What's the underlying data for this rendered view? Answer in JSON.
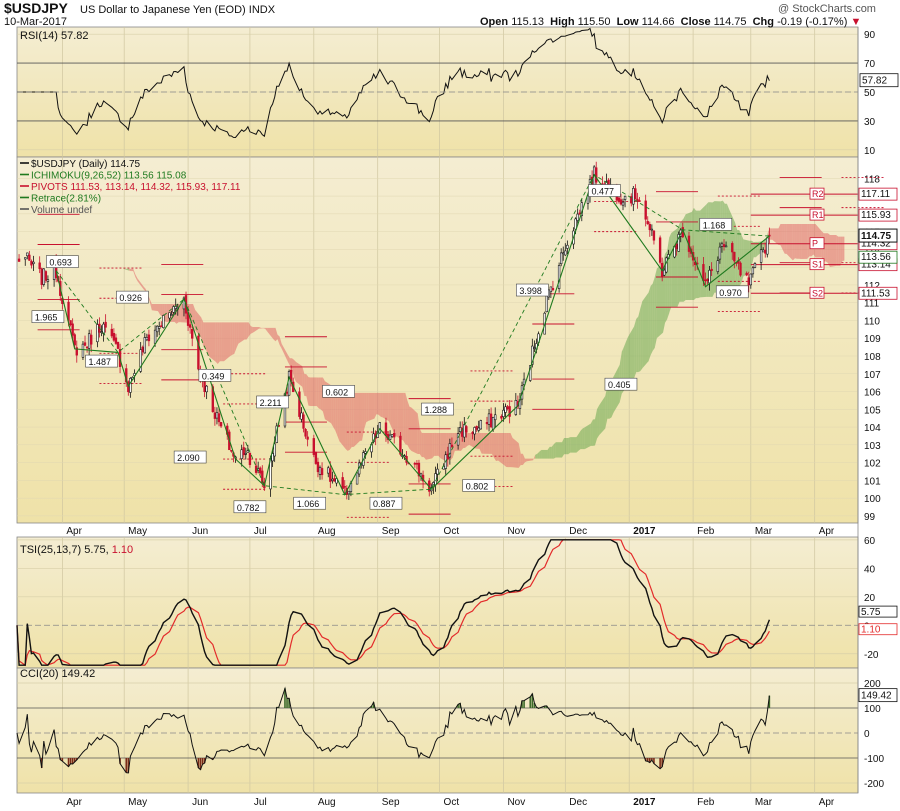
{
  "header": {
    "symbol": "$USDJPY",
    "description": "US Dollar to Japanese Yen (EOD)",
    "exchange": "INDX",
    "date": "10-Mar-2017",
    "watermark": "@ StockCharts.com",
    "open_label": "Open",
    "open": "115.13",
    "high_label": "High",
    "high": "115.50",
    "low_label": "Low",
    "low": "114.66",
    "close_label": "Close",
    "close": "114.75",
    "chg_label": "Chg",
    "chg": "-0.19 (-0.17%)"
  },
  "colors": {
    "bg_top": "#f4edd2",
    "bg_bottom": "#efe2a8",
    "up": "#1f7a1f",
    "down": "#c8102e",
    "pivot": "#c8102e",
    "cloud_bull": "#6aa84f",
    "cloud_bear": "#e06666",
    "tsi_signal": "#e32b2b",
    "oscillator_fill_pos": "#3d6b2a",
    "oscillator_fill_neg": "#7a2b18"
  },
  "rsi": {
    "label": "RSI(14) 57.82",
    "value_tag": "57.82"
  },
  "main": {
    "legend": [
      {
        "text": "$USDJPY (Daily) 114.75",
        "color": "#111111"
      },
      {
        "text": "ICHIMOKU(9,26,52) 113.56 115.08",
        "color": "#1f7a1f"
      },
      {
        "text": "PIVOTS 111.53, 113.14, 114.32, 115.93, 117.11",
        "color": "#c8102e"
      },
      {
        "text": "Retrace(2.81%)",
        "color": "#1f7a1f"
      },
      {
        "text": "Volume undef",
        "color": "#555555"
      }
    ],
    "pivot_labels": [
      {
        "label": "R2",
        "price": "117.11"
      },
      {
        "label": "R1",
        "price": "115.93"
      },
      {
        "label": "P",
        "price": "114.32"
      },
      {
        "label": "S1",
        "price": "113.14"
      },
      {
        "label": "S2",
        "price": "111.53"
      }
    ],
    "right_tags": [
      {
        "text": "114.75",
        "color": "#000000"
      },
      {
        "text": "115.08",
        "color": "#c8102e"
      },
      {
        "text": "114.32",
        "color": "#c8102e"
      },
      {
        "text": "113.56",
        "color": "#1f7a1f"
      }
    ],
    "retrace_labels": [
      "0.693",
      "0.926",
      "1.965",
      "1.487",
      "0.349",
      "2.090",
      "2.211",
      "0.602",
      "1.288",
      "0.782",
      "1.066",
      "0.887",
      "0.802",
      "3.998",
      "0.477",
      "0.405",
      "1.168",
      "0.970"
    ]
  },
  "tsi": {
    "label_main": "TSI(25,13,7) 5.75,",
    "label_signal": "1.10",
    "value_tag": "5.75",
    "signal_tag": "1.10"
  },
  "cci": {
    "label": "CCI(20) 149.42",
    "value_tag": "149.42"
  },
  "chart_data": [
    {
      "panel": "price",
      "type": "candlestick",
      "title": "$USDJPY (Daily) 114.75",
      "y_ticks": [
        99,
        100,
        101,
        102,
        103,
        104,
        105,
        106,
        107,
        108,
        109,
        110,
        111,
        112,
        113,
        114,
        115,
        116,
        117,
        118
      ],
      "ylim": [
        98.6,
        119.2
      ],
      "x_labels": [
        "Apr",
        "May",
        "Jun",
        "Jul",
        "Aug",
        "Sep",
        "Oct",
        "Nov",
        "Dec",
        "2017",
        "Feb",
        "Mar",
        "Apr"
      ],
      "close_anchors": [
        {
          "date": "2016-03-14",
          "close": 113.5
        },
        {
          "date": "2016-03-22",
          "close": 112.4
        },
        {
          "date": "2016-03-29",
          "close": 112.8
        },
        {
          "date": "2016-04-07",
          "close": 108.4
        },
        {
          "date": "2016-04-12",
          "close": 108.6
        },
        {
          "date": "2016-04-20",
          "close": 109.8
        },
        {
          "date": "2016-04-28",
          "close": 108.2
        },
        {
          "date": "2016-05-03",
          "close": 106.3
        },
        {
          "date": "2016-05-12",
          "close": 109.0
        },
        {
          "date": "2016-05-30",
          "close": 111.2
        },
        {
          "date": "2016-06-06",
          "close": 107.3
        },
        {
          "date": "2016-06-16",
          "close": 104.2
        },
        {
          "date": "2016-06-24",
          "close": 102.2
        },
        {
          "date": "2016-06-29",
          "close": 102.8
        },
        {
          "date": "2016-07-08",
          "close": 100.7
        },
        {
          "date": "2016-07-20",
          "close": 106.8
        },
        {
          "date": "2016-08-01",
          "close": 102.2
        },
        {
          "date": "2016-08-16",
          "close": 100.2
        },
        {
          "date": "2016-09-02",
          "close": 103.9
        },
        {
          "date": "2016-09-16",
          "close": 102.3
        },
        {
          "date": "2016-09-27",
          "close": 100.5
        },
        {
          "date": "2016-10-10",
          "close": 103.8
        },
        {
          "date": "2016-10-20",
          "close": 103.9
        },
        {
          "date": "2016-10-31",
          "close": 104.8
        },
        {
          "date": "2016-11-08",
          "close": 105.2
        },
        {
          "date": "2016-11-09",
          "close": 105.6
        },
        {
          "date": "2016-11-21",
          "close": 110.8
        },
        {
          "date": "2016-12-01",
          "close": 114.2
        },
        {
          "date": "2016-12-15",
          "close": 118.2
        },
        {
          "date": "2016-12-28",
          "close": 117.0
        },
        {
          "date": "2017-01-06",
          "close": 117.0
        },
        {
          "date": "2017-01-17",
          "close": 112.8
        },
        {
          "date": "2017-01-27",
          "close": 115.1
        },
        {
          "date": "2017-02-07",
          "close": 111.9
        },
        {
          "date": "2017-02-15",
          "close": 114.3
        },
        {
          "date": "2017-02-28",
          "close": 112.0
        },
        {
          "date": "2017-03-10",
          "close": 114.75
        }
      ],
      "pivots": {
        "S2": 111.53,
        "S1": 113.14,
        "P": 114.32,
        "R1": 115.93,
        "R2": 117.11
      }
    },
    {
      "panel": "rsi",
      "type": "line",
      "title": "RSI(14) 57.82",
      "y_ticks": [
        10,
        30,
        50,
        70,
        90
      ],
      "ylim": [
        5,
        95
      ],
      "overbought": 70,
      "oversold": 30,
      "last": 57.82
    },
    {
      "panel": "tsi",
      "type": "line",
      "title": "TSI(25,13,7)",
      "series": [
        {
          "name": "TSI",
          "last": 5.75
        },
        {
          "name": "Signal",
          "last": 1.1
        }
      ],
      "y_ticks": [
        -20,
        0,
        20,
        40,
        60
      ],
      "ylim": [
        -30,
        62
      ]
    },
    {
      "panel": "cci",
      "type": "line",
      "title": "CCI(20) 149.42",
      "y_ticks": [
        -200,
        -100,
        0,
        100,
        200
      ],
      "ylim": [
        -240,
        260
      ],
      "last": 149.42
    }
  ]
}
